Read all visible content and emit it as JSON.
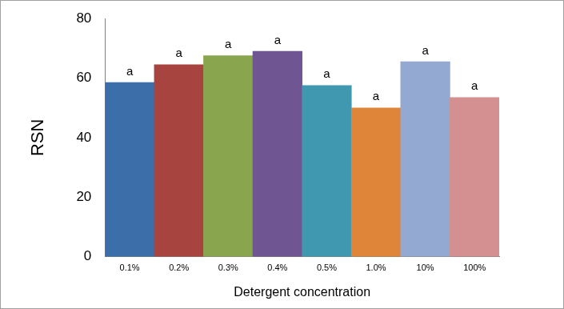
{
  "chart_data": {
    "type": "bar",
    "x_label": "Detergent concentration",
    "y_label": "RSN",
    "categories": [
      "0.1%",
      "0.2%",
      "0.3%",
      "0.4%",
      "0.5%",
      "1.0%",
      "10%",
      "100%"
    ],
    "values": [
      58.5,
      64.5,
      67.5,
      69,
      57.5,
      50,
      65.5,
      53.5
    ],
    "colors": [
      "#3c6ea9",
      "#a8443f",
      "#89a64e",
      "#6f5592",
      "#3f98b0",
      "#df853a",
      "#93a9d1",
      "#d49090"
    ],
    "annotations": [
      "a",
      "a",
      "a",
      "a",
      "a",
      "a",
      "a",
      "a"
    ],
    "ylim": [
      0,
      80
    ],
    "yticks": [
      0,
      20,
      40,
      60,
      80
    ],
    "grid": false
  }
}
